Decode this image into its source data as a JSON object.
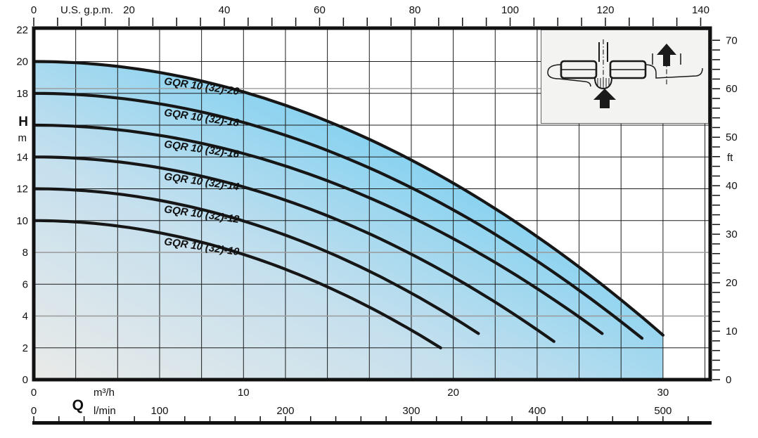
{
  "chart_data": {
    "type": "line",
    "description": "Pump performance curves, total head H versus flow Q",
    "series": [
      {
        "name": "GQR 10 (32)-20",
        "h0_m": 20,
        "q_max_m3h": 30.0,
        "h_end_m": 2.8
      },
      {
        "name": "GQR 10 (32)-18",
        "h0_m": 18,
        "q_max_m3h": 29.0,
        "h_end_m": 2.6
      },
      {
        "name": "GQR 10 (32)-16",
        "h0_m": 16,
        "q_max_m3h": 27.1,
        "h_end_m": 2.9
      },
      {
        "name": "GQR 10 (32)-14",
        "h0_m": 14,
        "q_max_m3h": 24.8,
        "h_end_m": 2.4
      },
      {
        "name": "GQR 10 (32)-12",
        "h0_m": 12,
        "q_max_m3h": 21.2,
        "h_end_m": 2.9
      },
      {
        "name": "GQR 10 (32)-10",
        "h0_m": 10,
        "q_max_m3h": 19.4,
        "h_end_m": 2.0
      }
    ],
    "x_axis_top": {
      "unit_label": "U.S. g.p.m.",
      "min": 0,
      "max": 140,
      "label_step": 20,
      "tick_step": 5,
      "m3h_per_gpm": 0.22712
    },
    "x_axis_bottom_m3h": {
      "unit_label": "m³/h",
      "labels": [
        0,
        10,
        20,
        30
      ]
    },
    "x_axis_bottom_lmin": {
      "flow_symbol": "Q",
      "unit_label": "l/min",
      "labels": [
        0,
        100,
        200,
        300,
        400,
        500
      ],
      "tick_step": 20,
      "lmin_per_m3h": 16.667
    },
    "y_axis_left": {
      "symbol": "H",
      "unit_label": "m",
      "min": 0,
      "max": 22,
      "labels": [
        22,
        20,
        18,
        14,
        12,
        10,
        8,
        6,
        4,
        2,
        0
      ],
      "grid_step_m": 2
    },
    "y_axis_right": {
      "unit_label": "ft",
      "min": 0,
      "max": 70,
      "label_step": 10,
      "tick_step": 2,
      "m_per_ft": 0.3048
    },
    "grid": {
      "x_step_m3h": 2,
      "y_step_m": 2,
      "gray_lines_m": [
        4,
        8,
        18.3
      ]
    },
    "curve_label_q_m3h": 6.2,
    "colors": {
      "curve": "#161616",
      "grid": "#1d1d1d",
      "gray_grid": "#9a9a9a",
      "axis": "#111111",
      "fill_bottom_left": "#e9eae8",
      "fill_mid": "#b4d9ee",
      "fill_top_right": "#4fc5ef",
      "inset_bg": "#f3f3f1"
    }
  }
}
